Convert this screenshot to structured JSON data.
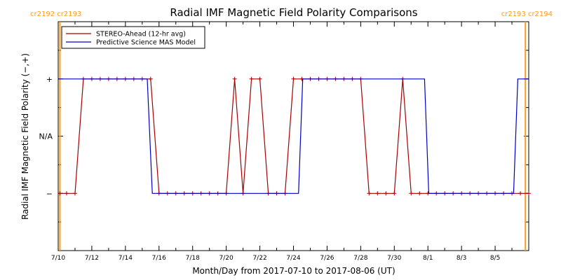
{
  "colors": {
    "stereo": "#a80000",
    "model": "#0000c8",
    "marker_lines": "#ff9a1e",
    "axes": "#000000"
  },
  "carrington_labels": {
    "left": "cr2192 cr2193",
    "right": "cr2193 cr2194"
  },
  "chart_data": {
    "type": "line",
    "title": "Radial IMF Magnetic Field Polarity Comparisons",
    "xlabel": "Month/Day from 2017-07-10 to 2017-08-06 (UT)",
    "ylabel": "Radial IMF Magnetic Field Polarity (−,+)",
    "x_unit": "days after 2017-07-10 00:00 UT",
    "xlim": [
      0,
      28
    ],
    "ylim": [
      -2,
      2
    ],
    "x_ticks": [
      {
        "x": 0,
        "label": "7/10"
      },
      {
        "x": 2,
        "label": "7/12"
      },
      {
        "x": 4,
        "label": "7/14"
      },
      {
        "x": 6,
        "label": "7/16"
      },
      {
        "x": 8,
        "label": "7/18"
      },
      {
        "x": 10,
        "label": "7/20"
      },
      {
        "x": 12,
        "label": "7/22"
      },
      {
        "x": 14,
        "label": "7/24"
      },
      {
        "x": 16,
        "label": "7/26"
      },
      {
        "x": 18,
        "label": "7/28"
      },
      {
        "x": 20,
        "label": "7/30"
      },
      {
        "x": 22,
        "label": "8/1"
      },
      {
        "x": 24,
        "label": "8/3"
      },
      {
        "x": 26,
        "label": "8/5"
      }
    ],
    "y_ticks": [
      {
        "y": 1,
        "label": "+"
      },
      {
        "y": 0,
        "label": "N/A"
      },
      {
        "y": -1,
        "label": "−"
      }
    ],
    "carrington_boundaries": [
      0.1,
      27.8
    ],
    "legend": {
      "placement": "top-left",
      "entries": [
        "STEREO-Ahead (12-hr avg)",
        "Predictive Science MAS Model"
      ]
    },
    "series": [
      {
        "name": "STEREO-Ahead (12-hr avg)",
        "color": "#a80000",
        "markers": "plus",
        "points": [
          [
            0.1,
            -1
          ],
          [
            0.5,
            -1
          ],
          [
            1,
            -1
          ],
          [
            1.5,
            1
          ],
          [
            2,
            1
          ],
          [
            2.5,
            1
          ],
          [
            3,
            1
          ],
          [
            3.5,
            1
          ],
          [
            4,
            1
          ],
          [
            4.5,
            1
          ],
          [
            5,
            1
          ],
          [
            5.5,
            1
          ],
          [
            6,
            -1
          ],
          [
            6.5,
            -1
          ],
          [
            7,
            -1
          ],
          [
            7.5,
            -1
          ],
          [
            8,
            -1
          ],
          [
            8.5,
            -1
          ],
          [
            9,
            -1
          ],
          [
            9.5,
            -1
          ],
          [
            10,
            -1
          ],
          [
            10.5,
            1
          ],
          [
            11,
            -1
          ],
          [
            11.5,
            1
          ],
          [
            12,
            1
          ],
          [
            12.5,
            -1
          ],
          [
            13,
            -1
          ],
          [
            13.5,
            -1
          ],
          [
            14,
            1
          ],
          [
            14.5,
            1
          ],
          [
            15,
            1
          ],
          [
            15.5,
            1
          ],
          [
            16,
            1
          ],
          [
            16.5,
            1
          ],
          [
            17,
            1
          ],
          [
            17.5,
            1
          ],
          [
            18,
            1
          ],
          [
            18.5,
            -1
          ],
          [
            19,
            -1
          ],
          [
            19.5,
            -1
          ],
          [
            20,
            -1
          ],
          [
            20.5,
            1
          ],
          [
            21,
            -1
          ],
          [
            21.5,
            -1
          ],
          [
            22,
            -1
          ],
          [
            22.5,
            -1
          ],
          [
            23,
            -1
          ],
          [
            23.5,
            -1
          ],
          [
            24,
            -1
          ],
          [
            24.5,
            -1
          ],
          [
            25,
            -1
          ],
          [
            25.5,
            -1
          ],
          [
            26,
            -1
          ],
          [
            26.5,
            -1
          ],
          [
            27,
            -1
          ],
          [
            27.5,
            -1
          ],
          [
            28,
            -1
          ]
        ]
      },
      {
        "name": "Predictive Science MAS Model",
        "color": "#0000c8",
        "markers": "none",
        "points": [
          [
            0,
            1
          ],
          [
            5.3,
            1
          ],
          [
            5.6,
            -1
          ],
          [
            14.3,
            -1
          ],
          [
            14.55,
            1
          ],
          [
            21.8,
            1
          ],
          [
            22.05,
            -1
          ],
          [
            27.1,
            -1
          ],
          [
            27.35,
            1
          ],
          [
            28,
            1
          ]
        ]
      }
    ]
  }
}
